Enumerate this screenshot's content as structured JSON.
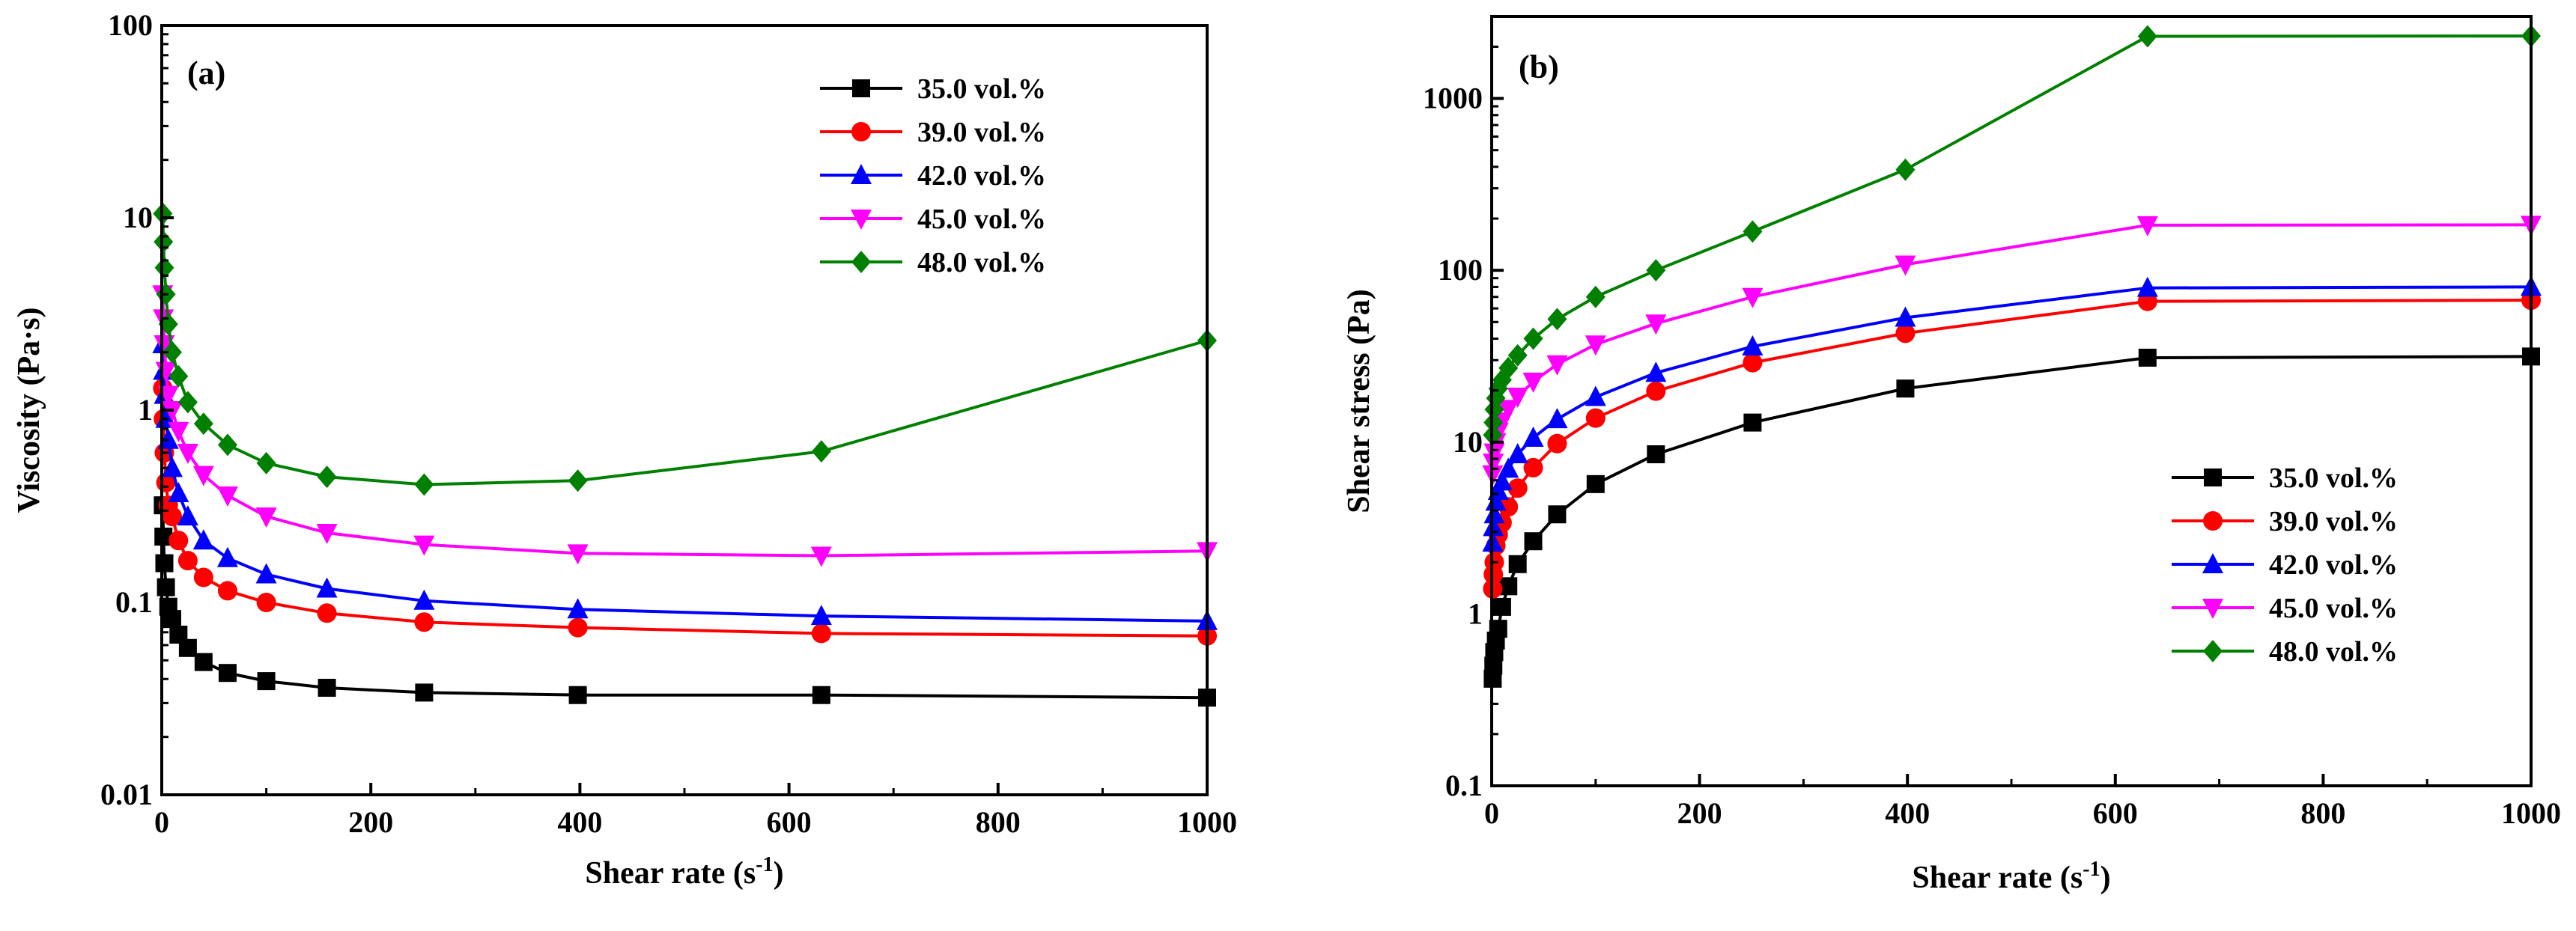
{
  "chart_data": [
    {
      "type": "line",
      "panel_label": "(a)",
      "xlabel": "Shear rate (s",
      "xlabel_sup": "-1",
      "xlabel_end": ")",
      "ylabel": "Viscosity (Pa·s)",
      "xlim": [
        0,
        1000
      ],
      "ylim": [
        0.01,
        100
      ],
      "yscale": "log",
      "x_ticks": [
        0,
        200,
        400,
        600,
        800,
        1000
      ],
      "y_ticks": [
        0.01,
        0.1,
        1,
        10,
        100
      ],
      "y_tick_labels": [
        "0.01",
        "0.1",
        "1",
        "10",
        "100"
      ],
      "legend_position": "top-right",
      "grid": false,
      "x": [
        1,
        1.6,
        2.5,
        4,
        6.3,
        10,
        16,
        25,
        40,
        63,
        100,
        158,
        251,
        398,
        631,
        1000
      ],
      "series": [
        {
          "name": "35.0 vol.%",
          "color": "#000000",
          "marker": "square",
          "values": [
            0.32,
            0.22,
            0.16,
            0.12,
            0.095,
            0.082,
            0.068,
            0.058,
            0.049,
            0.043,
            0.039,
            0.036,
            0.034,
            0.033,
            0.033,
            0.032
          ]
        },
        {
          "name": "39.0 vol.%",
          "color": "#ff0000",
          "marker": "circle",
          "values": [
            1.3,
            0.9,
            0.6,
            0.42,
            0.32,
            0.28,
            0.21,
            0.165,
            0.135,
            0.115,
            0.1,
            0.088,
            0.079,
            0.074,
            0.069,
            0.067
          ]
        },
        {
          "name": "42.0 vol.%",
          "color": "#0000ff",
          "marker": "triangle-up",
          "values": [
            2.2,
            1.6,
            1.2,
            0.9,
            0.7,
            0.5,
            0.37,
            0.28,
            0.21,
            0.17,
            0.14,
            0.118,
            0.102,
            0.092,
            0.085,
            0.08
          ]
        },
        {
          "name": "45.0 vol.%",
          "color": "#ff00ff",
          "marker": "triangle-down",
          "values": [
            4.0,
            3.0,
            2.2,
            1.6,
            1.2,
            1.0,
            0.78,
            0.6,
            0.46,
            0.36,
            0.28,
            0.23,
            0.2,
            0.18,
            0.175,
            0.185
          ]
        },
        {
          "name": "48.0 vol.%",
          "color": "#008000",
          "marker": "diamond",
          "values": [
            10.5,
            7.5,
            5.5,
            4.0,
            2.8,
            2.0,
            1.5,
            1.1,
            0.85,
            0.66,
            0.53,
            0.45,
            0.41,
            0.43,
            0.61,
            2.3
          ]
        }
      ]
    },
    {
      "type": "line",
      "panel_label": "(b)",
      "xlabel": "Shear rate (s",
      "xlabel_sup": "-1",
      "xlabel_end": ")",
      "ylabel": "Shear stress (Pa)",
      "xlim": [
        0,
        1000
      ],
      "ylim": [
        0.1,
        3000
      ],
      "yscale": "log",
      "x_ticks": [
        0,
        200,
        400,
        600,
        800,
        1000
      ],
      "y_ticks": [
        0.1,
        1,
        10,
        100,
        1000
      ],
      "y_tick_labels": [
        "0.1",
        "1",
        "10",
        "100",
        "1000"
      ],
      "legend_position": "bottom-right",
      "grid": false,
      "x": [
        1,
        1.6,
        2.5,
        4,
        6.3,
        10,
        16,
        25,
        40,
        63,
        100,
        158,
        251,
        398,
        631,
        1000
      ],
      "series": [
        {
          "name": "35.0 vol.%",
          "color": "#000000",
          "marker": "square",
          "values": [
            0.42,
            0.5,
            0.6,
            0.7,
            0.82,
            1.1,
            1.45,
            1.95,
            2.65,
            3.8,
            5.7,
            8.5,
            13,
            20.5,
            31,
            31.5
          ]
        },
        {
          "name": "39.0 vol.%",
          "color": "#ff0000",
          "marker": "circle",
          "values": [
            1.4,
            1.7,
            2.0,
            2.5,
            2.9,
            3.4,
            4.2,
            5.4,
            7.1,
            9.8,
            13.8,
            19.8,
            29,
            43,
            66,
            67
          ]
        },
        {
          "name": "42.0 vol.%",
          "color": "#0000ff",
          "marker": "triangle-up",
          "values": [
            2.6,
            3.2,
            3.8,
            4.5,
            5.2,
            5.9,
            7.0,
            8.5,
            10.6,
            13.6,
            18.3,
            25.3,
            36,
            53,
            79,
            80
          ]
        },
        {
          "name": "45.0 vol.%",
          "color": "#ff00ff",
          "marker": "triangle-down",
          "values": [
            6.5,
            7.6,
            8.7,
            10.0,
            11.5,
            13.2,
            15.6,
            18.4,
            22.5,
            28.4,
            37,
            49,
            70,
            108,
            183,
            184
          ]
        },
        {
          "name": "48.0 vol.%",
          "color": "#008000",
          "marker": "diamond",
          "values": [
            11,
            13,
            15.5,
            18,
            20.5,
            23,
            27,
            32,
            40,
            52,
            70,
            100,
            168,
            385,
            2300,
            2310
          ]
        }
      ]
    }
  ]
}
